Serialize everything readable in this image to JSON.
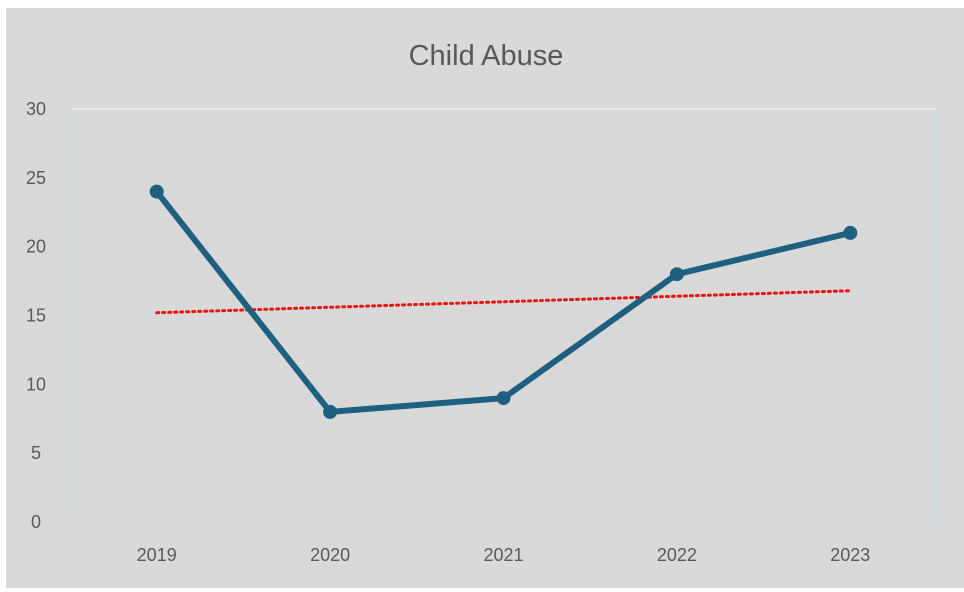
{
  "chart_data": {
    "type": "line",
    "title": "Child Abuse",
    "xlabel": "",
    "ylabel": "",
    "categories": [
      "2019",
      "2020",
      "2021",
      "2022",
      "2023"
    ],
    "series": [
      {
        "values": [
          24,
          8,
          9,
          18,
          21
        ],
        "color": "#1f5f7f",
        "markers": true
      }
    ],
    "trendline": {
      "type": "linear",
      "color": "#ee1111",
      "style": "dotted"
    },
    "ylim": [
      0,
      30
    ],
    "yticks": [
      "0",
      "5",
      "10",
      "15",
      "20",
      "25",
      "30"
    ],
    "grid": false,
    "legend": "none"
  }
}
